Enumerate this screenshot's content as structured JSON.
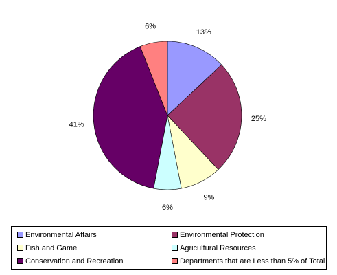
{
  "chart_data": {
    "type": "pie",
    "slices": [
      {
        "name": "Environmental Affairs",
        "value": 13,
        "label": "13%",
        "color": "#9999ff"
      },
      {
        "name": "Environmental Protection",
        "value": 25,
        "label": "25%",
        "color": "#993366"
      },
      {
        "name": "Fish and Game",
        "value": 9,
        "label": "9%",
        "color": "#ffffcc"
      },
      {
        "name": "Agricultural Resources",
        "value": 6,
        "label": "6%",
        "color": "#ccffff"
      },
      {
        "name": "Conservation and Recreation",
        "value": 41,
        "label": "41%",
        "color": "#660066"
      },
      {
        "name": "Departments that are Less than 5% of Total",
        "value": 6,
        "label": "6%",
        "color": "#ff8080"
      }
    ],
    "legend_placement": "bottom"
  }
}
